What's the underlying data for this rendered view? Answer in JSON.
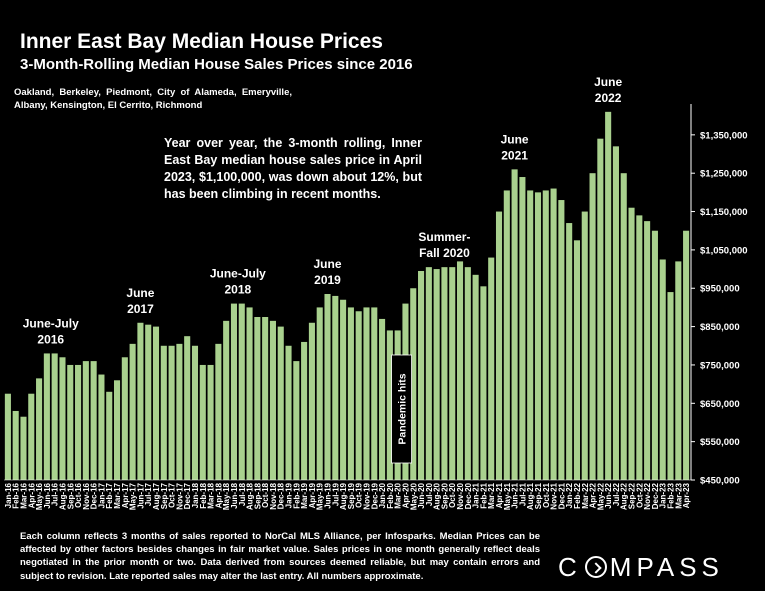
{
  "header": {
    "title": "Inner East Bay Median House Prices",
    "subtitle": "3-Month-Rolling Median House Sales Prices since 2016",
    "areas": "Oakland, Berkeley, Piedmont, City of Alameda, Emeryville, Albany, Kensington, El Cerrito, Richmond"
  },
  "note": "Year over year, the 3-month rolling, Inner East Bay median house sales price in April 2023, $1,100,000, was down about 12%, but has been climbing in recent months.",
  "footnote": "Each column reflects 3 months of sales reported to NorCal MLS Alliance, per Infosparks. Median Prices can be affected by other factors besides changes in fair market value. Sales prices in one month generally reflect deals negotiated in the prior month or two. Data derived from sources deemed reliable, but may contain errors and subject to revision. Late reported sales may alter the last entry. All numbers approximate.",
  "logo": {
    "left": "C",
    "right": "MPASS"
  },
  "colors": {
    "bar": "#a9d18e",
    "background": "#000000",
    "text": "#ffffff"
  },
  "chart_data": {
    "type": "bar",
    "ylim": [
      450000,
      1420000
    ],
    "yticks": [
      "$450,000",
      "$550,000",
      "$650,000",
      "$750,000",
      "$850,000",
      "$950,000",
      "$1,050,000",
      "$1,150,000",
      "$1,250,000",
      "$1,350,000"
    ],
    "ytick_values": [
      450000,
      550000,
      650000,
      750000,
      850000,
      950000,
      1050000,
      1150000,
      1250000,
      1350000
    ],
    "grid": false,
    "categories": [
      "Jan-16",
      "Feb-16",
      "Mar-16",
      "Apr-16",
      "May-16",
      "Jun-16",
      "Jul-16",
      "Aug-16",
      "Sep-16",
      "Oct-16",
      "Nov-16",
      "Dec-16",
      "Jan-17",
      "Feb-17",
      "Mar-17",
      "Apr-17",
      "May-17",
      "Jun-17",
      "Jul-17",
      "Aug-17",
      "Sep-17",
      "Oct-17",
      "Nov-17",
      "Dec-17",
      "Jan-18",
      "Feb-18",
      "Mar-18",
      "Apr-18",
      "May-18",
      "Jun-18",
      "Jul-18",
      "Aug-18",
      "Sep-18",
      "Oct-18",
      "Nov-18",
      "Dec-18",
      "Jan-19",
      "Feb-19",
      "Mar-19",
      "Apr-19",
      "May-19",
      "Jun-19",
      "Jul-19",
      "Aug-19",
      "Sep-19",
      "Oct-19",
      "Nov-19",
      "Dec-19",
      "Jan-20",
      "Feb-20",
      "Mar-20",
      "Apr-20",
      "May-20",
      "Jun-20",
      "Jul-20",
      "Aug-20",
      "Sep-20",
      "Oct-20",
      "Nov-20",
      "Dec-20",
      "Jan-21",
      "Feb-21",
      "Mar-21",
      "Apr-21",
      "May-21",
      "Jun-21",
      "Jul-21",
      "Aug-21",
      "Sep-21",
      "Oct-21",
      "Nov-21",
      "Dec-21",
      "Jan-22",
      "Feb-22",
      "Mar-22",
      "Apr-22",
      "May-22",
      "Jun-22",
      "Jul-22",
      "Aug-22",
      "Sep-22",
      "Oct-22",
      "Nov-22",
      "Dec-22",
      "Jan-23",
      "Feb-23",
      "Mar-23",
      "Apr-23"
    ],
    "values": [
      675000,
      630000,
      615000,
      675000,
      715000,
      780000,
      780000,
      770000,
      750000,
      750000,
      760000,
      760000,
      725000,
      680000,
      710000,
      770000,
      805000,
      860000,
      855000,
      850000,
      800000,
      800000,
      805000,
      825000,
      800000,
      750000,
      750000,
      805000,
      865000,
      910000,
      910000,
      900000,
      875000,
      875000,
      865000,
      850000,
      800000,
      760000,
      810000,
      860000,
      900000,
      935000,
      930000,
      920000,
      900000,
      890000,
      900000,
      900000,
      870000,
      840000,
      840000,
      910000,
      950000,
      995000,
      1005000,
      1000000,
      1005000,
      1005000,
      1020000,
      1005000,
      985000,
      955000,
      1030000,
      1150000,
      1205000,
      1260000,
      1240000,
      1205000,
      1200000,
      1205000,
      1210000,
      1180000,
      1120000,
      1075000,
      1150000,
      1250000,
      1340000,
      1410000,
      1320000,
      1250000,
      1160000,
      1140000,
      1125000,
      1100000,
      1025000,
      940000,
      1020000,
      1100000
    ],
    "annotations": [
      {
        "lines": [
          "June-July",
          "2016"
        ],
        "x_index": 5.5
      },
      {
        "lines": [
          "June",
          "2017"
        ],
        "x_index": 17
      },
      {
        "lines": [
          "June-July",
          "2018"
        ],
        "x_index": 29.5
      },
      {
        "lines": [
          "June",
          "2019"
        ],
        "x_index": 41
      },
      {
        "lines": [
          "Summer-",
          "Fall 2020"
        ],
        "x_index": 56
      },
      {
        "lines": [
          "June",
          "2021"
        ],
        "x_index": 65
      },
      {
        "lines": [
          "June",
          "2022"
        ],
        "x_index": 77
      }
    ],
    "vertical_label": {
      "text": "Pandemic hits",
      "x_index": 50.5
    }
  }
}
